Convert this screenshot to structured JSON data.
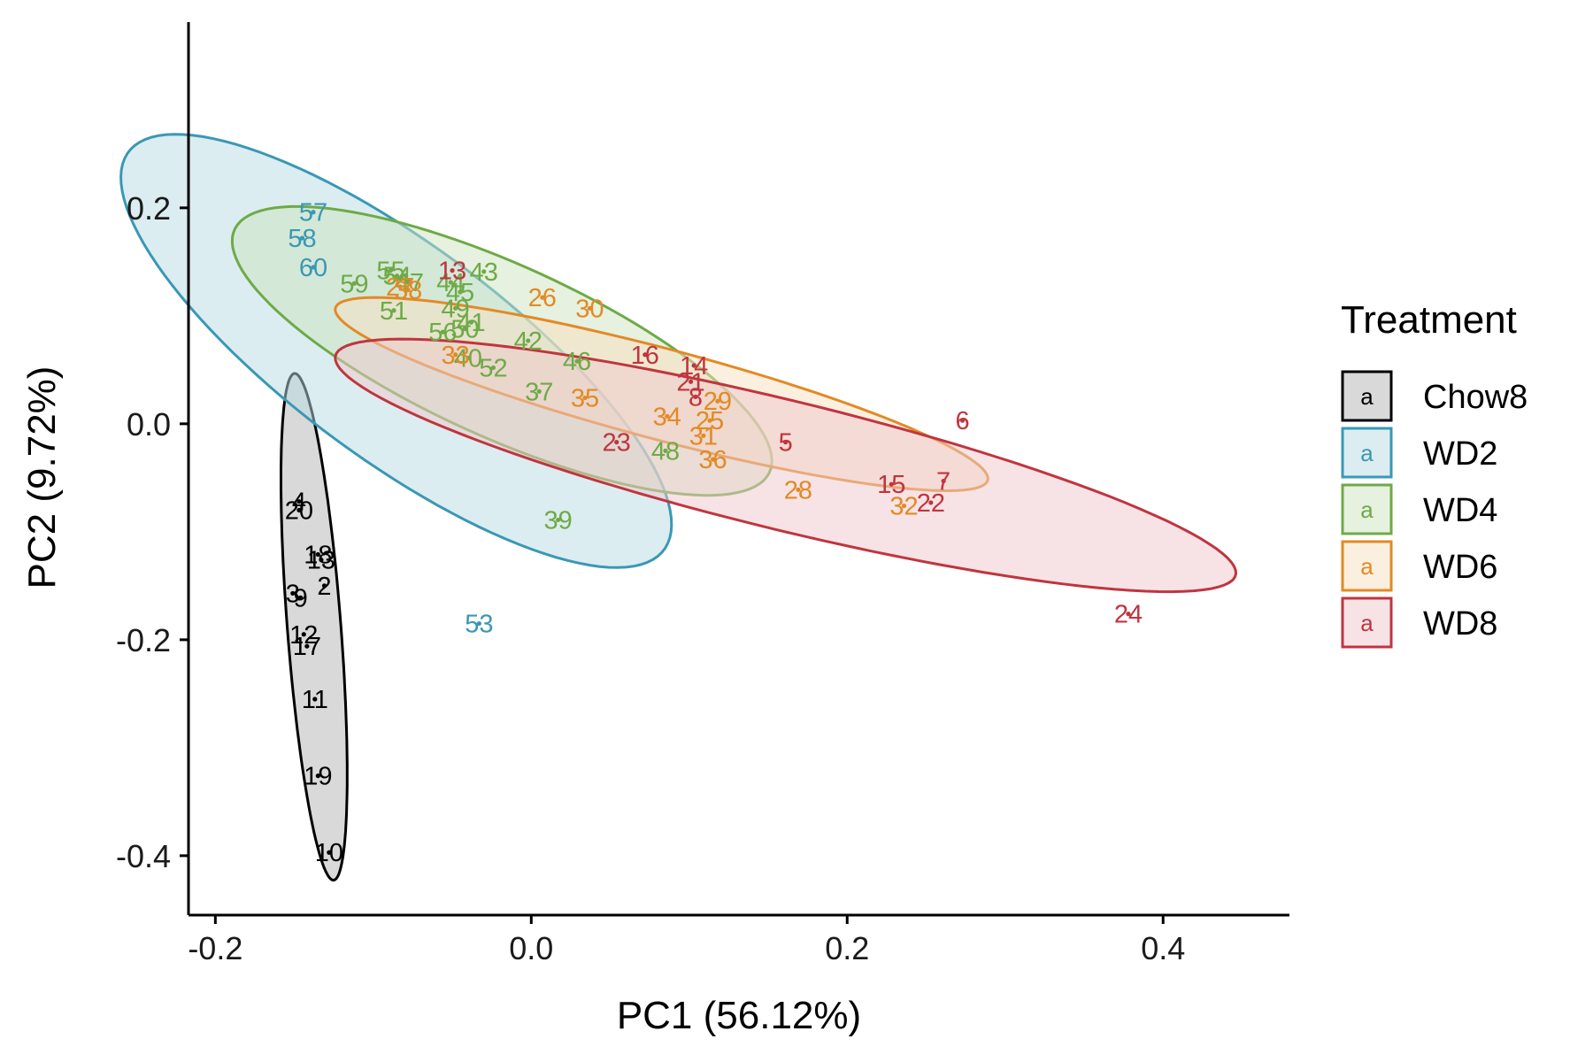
{
  "chart_data": {
    "type": "scatter",
    "xlabel": "PC1 (56.12%)",
    "ylabel": "PC2 (9.72%)",
    "xlim": [
      -0.217,
      0.48
    ],
    "ylim": [
      -0.455,
      0.372
    ],
    "xticks": [
      -0.2,
      0.0,
      0.2,
      0.4
    ],
    "xtick_labels": [
      "-0.2",
      "0.0",
      "0.2",
      "0.4"
    ],
    "yticks": [
      -0.4,
      -0.2,
      0.0,
      0.2
    ],
    "ytick_labels": [
      "-0.4",
      "-0.2",
      "0.0",
      "0.2"
    ],
    "grid": false,
    "legend": {
      "title": "Treatment",
      "position": "right",
      "key_glyph": "a"
    },
    "series": [
      {
        "name": "Chow8",
        "color": "#000000",
        "fill": "#b3b3b3",
        "ellipse": {
          "cx": -0.1375,
          "cy": -0.188,
          "rx": 0.235,
          "ry": 0.017,
          "angle": -87.0
        },
        "points": [
          {
            "label": "4",
            "x": -0.147,
            "y": -0.072
          },
          {
            "label": "20",
            "x": -0.147,
            "y": -0.08
          },
          {
            "label": "18",
            "x": -0.135,
            "y": -0.121
          },
          {
            "label": "13",
            "x": -0.133,
            "y": -0.126
          },
          {
            "label": "2",
            "x": -0.131,
            "y": -0.15
          },
          {
            "label": "3",
            "x": -0.151,
            "y": -0.157
          },
          {
            "label": "9",
            "x": -0.146,
            "y": -0.161
          },
          {
            "label": "12",
            "x": -0.144,
            "y": -0.195
          },
          {
            "label": "17",
            "x": -0.142,
            "y": -0.206
          },
          {
            "label": "11",
            "x": -0.137,
            "y": -0.255
          },
          {
            "label": "19",
            "x": -0.135,
            "y": -0.326
          },
          {
            "label": "10",
            "x": -0.128,
            "y": -0.397
          }
        ]
      },
      {
        "name": "WD2",
        "color": "#3a98b4",
        "fill": "#b7dbe3",
        "ellipse": {
          "cx": -0.0855,
          "cy": 0.0675,
          "rx": 0.2525,
          "ry": 0.083,
          "angle": -50.0
        },
        "points": [
          {
            "label": "57",
            "x": -0.138,
            "y": 0.196
          },
          {
            "label": "58",
            "x": -0.145,
            "y": 0.172
          },
          {
            "label": "60",
            "x": -0.138,
            "y": 0.145
          },
          {
            "label": "53",
            "x": -0.033,
            "y": -0.185
          }
        ]
      },
      {
        "name": "WD4",
        "color": "#6eaa47",
        "fill": "#cde4bf",
        "ellipse": {
          "cx": -0.0185,
          "cy": 0.0675,
          "rx": 0.2045,
          "ry": 0.0725,
          "angle": -36.0
        },
        "points": [
          {
            "label": "59",
            "x": -0.112,
            "y": 0.13
          },
          {
            "label": "55",
            "x": -0.089,
            "y": 0.142
          },
          {
            "label": "54",
            "x": -0.085,
            "y": 0.137
          },
          {
            "label": "51",
            "x": -0.087,
            "y": 0.105
          },
          {
            "label": "47",
            "x": -0.077,
            "y": 0.131
          },
          {
            "label": "44",
            "x": -0.051,
            "y": 0.131
          },
          {
            "label": "43",
            "x": -0.03,
            "y": 0.141
          },
          {
            "label": "45",
            "x": -0.045,
            "y": 0.122
          },
          {
            "label": "49",
            "x": -0.048,
            "y": 0.107
          },
          {
            "label": "56",
            "x": -0.056,
            "y": 0.085
          },
          {
            "label": "50",
            "x": -0.042,
            "y": 0.088
          },
          {
            "label": "41",
            "x": -0.038,
            "y": 0.094
          },
          {
            "label": "40",
            "x": -0.04,
            "y": 0.061
          },
          {
            "label": "52",
            "x": -0.024,
            "y": 0.052
          },
          {
            "label": "42",
            "x": -0.002,
            "y": 0.077
          },
          {
            "label": "37",
            "x": 0.005,
            "y": 0.03
          },
          {
            "label": "46",
            "x": 0.029,
            "y": 0.058
          },
          {
            "label": "48",
            "x": 0.085,
            "y": -0.025
          },
          {
            "label": "39",
            "x": 0.017,
            "y": -0.089
          }
        ]
      },
      {
        "name": "WD6",
        "color": "#e28a26",
        "fill": "#f7dfc0",
        "ellipse": {
          "cx": 0.0825,
          "cy": 0.0275,
          "rx": 0.2215,
          "ry": 0.0405,
          "angle": -21.5
        },
        "points": [
          {
            "label": "27",
            "x": -0.083,
            "y": 0.127
          },
          {
            "label": "38",
            "x": -0.078,
            "y": 0.124
          },
          {
            "label": "33",
            "x": -0.048,
            "y": 0.064
          },
          {
            "label": "26",
            "x": 0.007,
            "y": 0.117
          },
          {
            "label": "30",
            "x": 0.037,
            "y": 0.107
          },
          {
            "label": "35",
            "x": 0.034,
            "y": 0.024
          },
          {
            "label": "34",
            "x": 0.086,
            "y": 0.007
          },
          {
            "label": "29",
            "x": 0.118,
            "y": 0.021
          },
          {
            "label": "25",
            "x": 0.113,
            "y": 0.003
          },
          {
            "label": "31",
            "x": 0.109,
            "y": -0.011
          },
          {
            "label": "36",
            "x": 0.115,
            "y": -0.033
          },
          {
            "label": "28",
            "x": 0.169,
            "y": -0.061
          },
          {
            "label": "32",
            "x": 0.236,
            "y": -0.076
          }
        ]
      },
      {
        "name": "WD8",
        "color": "#c0353f",
        "fill": "#f0c7cb",
        "ellipse": {
          "cx": 0.161,
          "cy": -0.0385,
          "rx": 0.3027,
          "ry": 0.058,
          "angle": -20.0
        },
        "points": [
          {
            "label": "13",
            "x": -0.05,
            "y": 0.142
          },
          {
            "label": "16",
            "x": 0.072,
            "y": 0.064
          },
          {
            "label": "14",
            "x": 0.103,
            "y": 0.054
          },
          {
            "label": "21",
            "x": 0.101,
            "y": 0.039
          },
          {
            "label": "8",
            "x": 0.104,
            "y": 0.025
          },
          {
            "label": "23",
            "x": 0.054,
            "y": -0.017
          },
          {
            "label": "5",
            "x": 0.161,
            "y": -0.017
          },
          {
            "label": "6",
            "x": 0.273,
            "y": 0.003
          },
          {
            "label": "15",
            "x": 0.228,
            "y": -0.056
          },
          {
            "label": "7",
            "x": 0.261,
            "y": -0.053
          },
          {
            "label": "22",
            "x": 0.253,
            "y": -0.073
          },
          {
            "label": "24",
            "x": 0.378,
            "y": -0.176
          }
        ]
      }
    ]
  }
}
